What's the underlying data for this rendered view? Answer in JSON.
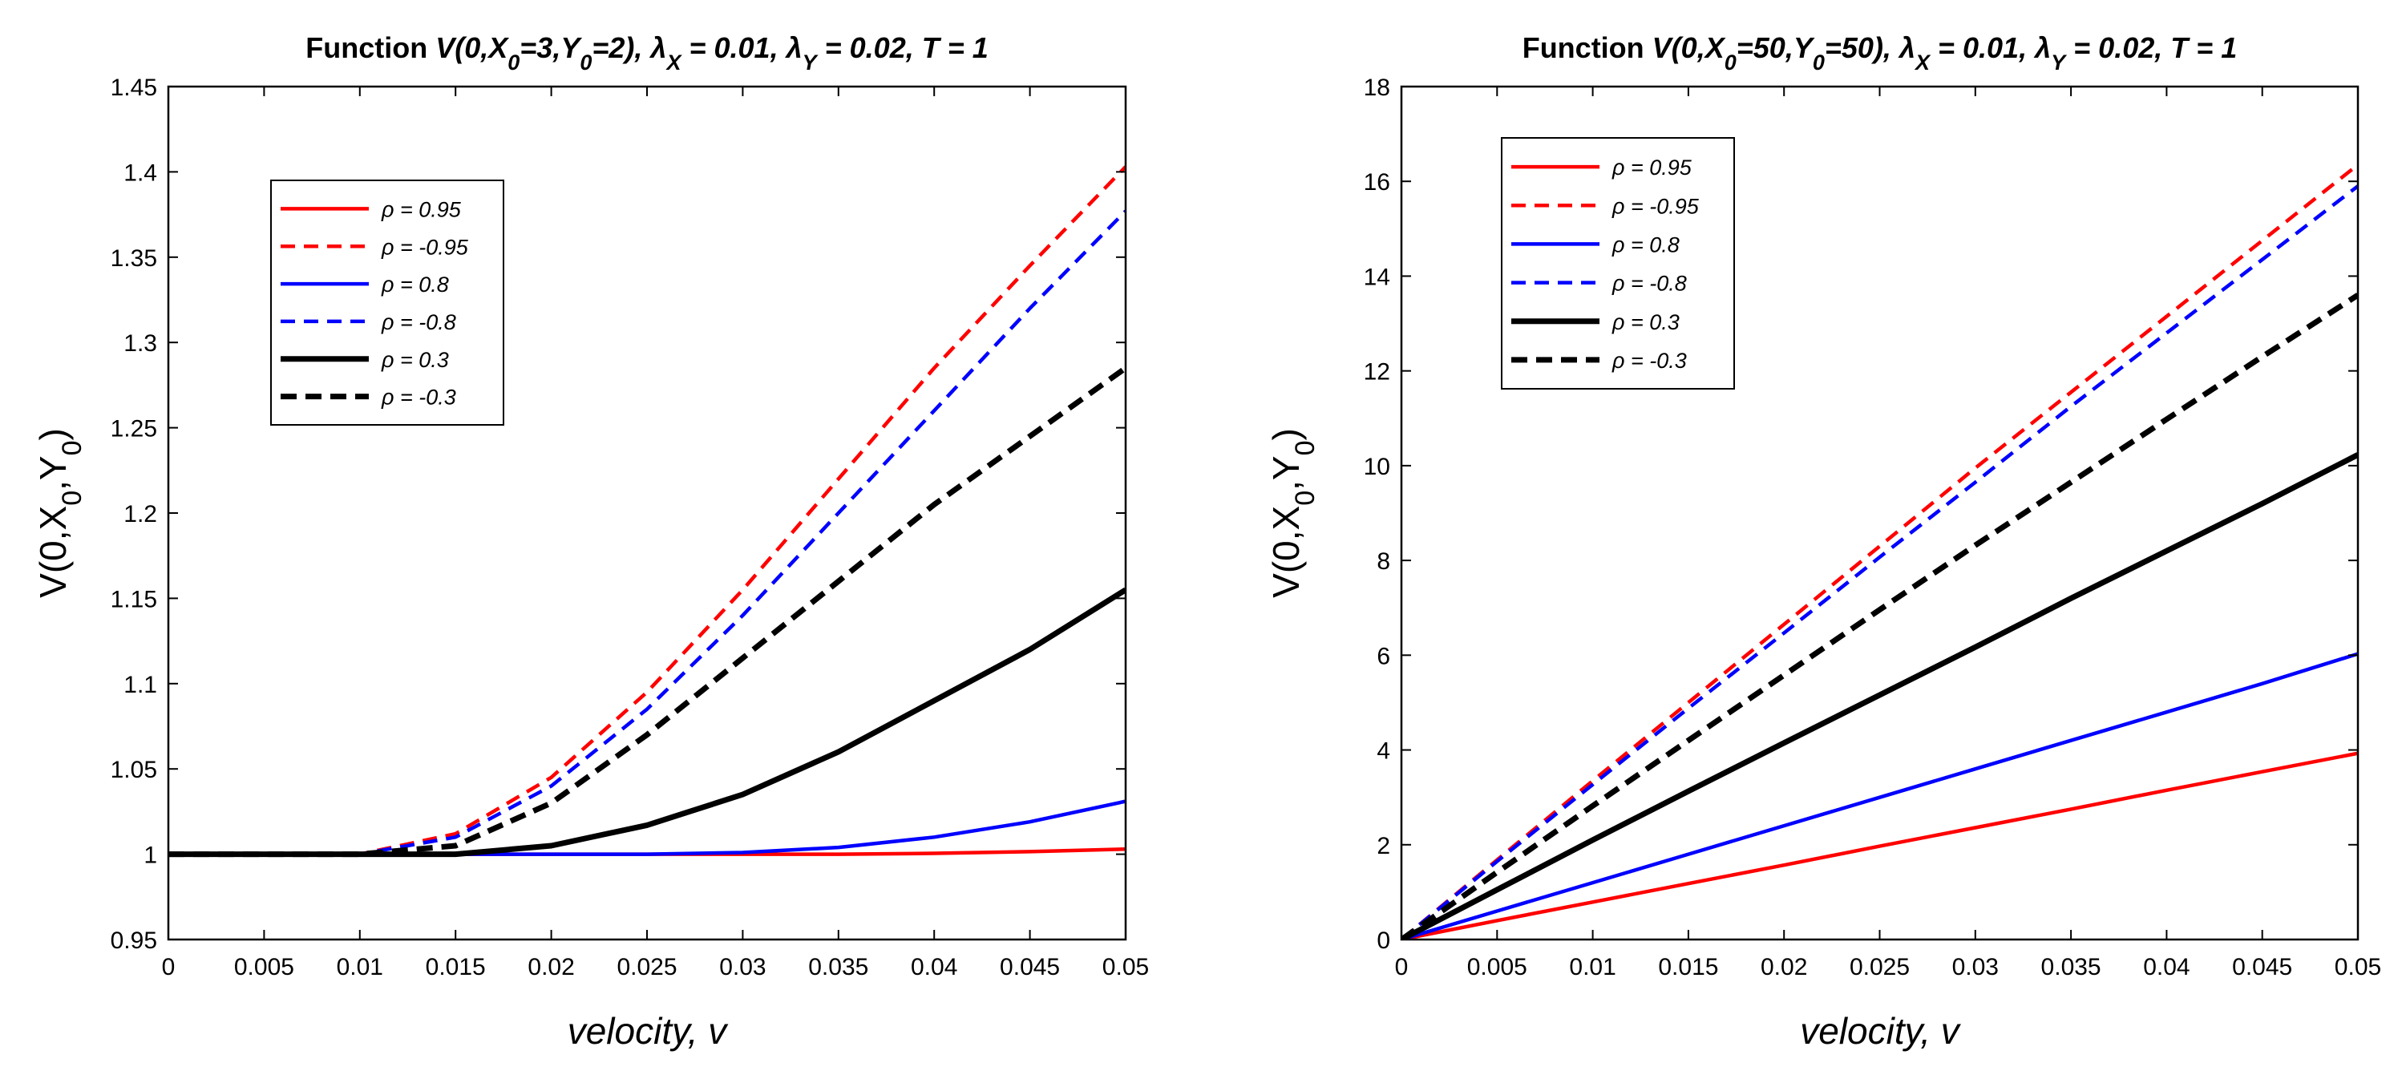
{
  "chart_data": [
    {
      "type": "line",
      "title": {
        "prefix": "Function",
        "parts": [
          {
            "t": "V(0,X",
            "sub": false
          },
          {
            "t": "0",
            "sub": true
          },
          {
            "t": "=3,Y",
            "sub": false
          },
          {
            "t": "0",
            "sub": true
          },
          {
            "t": "=2), ",
            "sub": false
          },
          {
            "t": "λ",
            "sub": false
          },
          {
            "t": "X",
            "sub": true
          },
          {
            "t": " = 0.01, ",
            "sub": false
          },
          {
            "t": "λ",
            "sub": false
          },
          {
            "t": "Y",
            "sub": true
          },
          {
            "t": " = 0.02, T = 1",
            "sub": false
          }
        ]
      },
      "xlabel": "velocity, v",
      "ylabel": {
        "main": "V(0,X",
        "sub1": "0",
        "mid": ",Y",
        "sub2": "0",
        "end": ")"
      },
      "xlim": [
        0,
        0.05
      ],
      "ylim": [
        0.95,
        1.45
      ],
      "xticks": [
        0,
        0.005,
        0.01,
        0.015,
        0.02,
        0.025,
        0.03,
        0.035,
        0.04,
        0.045,
        0.05
      ],
      "xtick_labels": [
        "0",
        "0.005",
        "0.01",
        "0.015",
        "0.02",
        "0.025",
        "0.03",
        "0.035",
        "0.04",
        "0.045",
        "0.05"
      ],
      "yticks": [
        0.95,
        1,
        1.05,
        1.1,
        1.15,
        1.2,
        1.25,
        1.3,
        1.35,
        1.4,
        1.45
      ],
      "ytick_labels": [
        "0.95",
        "1",
        "1.05",
        "1.1",
        "1.15",
        "1.2",
        "1.25",
        "1.3",
        "1.35",
        "1.4",
        "1.45"
      ],
      "legend_position": "upper-left",
      "x": [
        0,
        0.005,
        0.01,
        0.015,
        0.02,
        0.025,
        0.03,
        0.035,
        0.04,
        0.045,
        0.05
      ],
      "series": [
        {
          "name": "ρ = 0.95",
          "color": "#ff0000",
          "dash": false,
          "bold": false,
          "values": [
            1,
            1,
            1,
            1,
            1,
            1,
            1,
            1,
            1.0005,
            1.0015,
            1.003
          ]
        },
        {
          "name": "ρ = -0.95",
          "color": "#ff0000",
          "dash": true,
          "bold": false,
          "values": [
            1,
            1,
            1,
            1.012,
            1.045,
            1.095,
            1.155,
            1.22,
            1.285,
            1.345,
            1.403
          ]
        },
        {
          "name": "ρ = 0.8",
          "color": "#0000ff",
          "dash": false,
          "bold": false,
          "values": [
            1,
            1,
            1,
            1,
            1,
            1,
            1.001,
            1.004,
            1.01,
            1.019,
            1.031
          ]
        },
        {
          "name": "ρ = -0.8",
          "color": "#0000ff",
          "dash": true,
          "bold": false,
          "values": [
            1,
            1,
            1,
            1.01,
            1.04,
            1.085,
            1.14,
            1.2,
            1.26,
            1.32,
            1.377
          ]
        },
        {
          "name": "ρ = 0.3",
          "color": "#000000",
          "dash": false,
          "bold": true,
          "values": [
            1,
            1,
            1,
            1,
            1.005,
            1.017,
            1.035,
            1.06,
            1.09,
            1.12,
            1.155
          ]
        },
        {
          "name": "ρ = -0.3",
          "color": "#000000",
          "dash": true,
          "bold": true,
          "values": [
            1,
            1,
            1,
            1.005,
            1.03,
            1.07,
            1.115,
            1.16,
            1.205,
            1.245,
            1.285
          ]
        }
      ]
    },
    {
      "type": "line",
      "title": {
        "prefix": "Function",
        "parts": [
          {
            "t": "V(0,X",
            "sub": false
          },
          {
            "t": "0",
            "sub": true
          },
          {
            "t": "=50,Y",
            "sub": false
          },
          {
            "t": "0",
            "sub": true
          },
          {
            "t": "=50), ",
            "sub": false
          },
          {
            "t": "λ",
            "sub": false
          },
          {
            "t": "X",
            "sub": true
          },
          {
            "t": " = 0.01, ",
            "sub": false
          },
          {
            "t": "λ",
            "sub": false
          },
          {
            "t": "Y",
            "sub": true
          },
          {
            "t": " = 0.02, T = 1",
            "sub": false
          }
        ]
      },
      "xlabel": "velocity, v",
      "ylabel": {
        "main": "V(0,X",
        "sub1": "0",
        "mid": ",Y",
        "sub2": "0",
        "end": ")"
      },
      "xlim": [
        0,
        0.05
      ],
      "ylim": [
        0,
        18
      ],
      "xticks": [
        0,
        0.005,
        0.01,
        0.015,
        0.02,
        0.025,
        0.03,
        0.035,
        0.04,
        0.045,
        0.05
      ],
      "xtick_labels": [
        "0",
        "0.005",
        "0.01",
        "0.015",
        "0.02",
        "0.025",
        "0.03",
        "0.035",
        "0.04",
        "0.045",
        "0.05"
      ],
      "yticks": [
        0,
        2,
        4,
        6,
        8,
        10,
        12,
        14,
        16,
        18
      ],
      "ytick_labels": [
        "0",
        "2",
        "4",
        "6",
        "8",
        "10",
        "12",
        "14",
        "16",
        "18"
      ],
      "legend_position": "upper-left",
      "x": [
        0,
        0.005,
        0.01,
        0.015,
        0.02,
        0.025,
        0.03,
        0.035,
        0.04,
        0.045,
        0.05
      ],
      "series": [
        {
          "name": "ρ = 0.95",
          "color": "#ff0000",
          "dash": false,
          "bold": false,
          "values": [
            0,
            0.4,
            0.79,
            1.18,
            1.57,
            1.97,
            2.36,
            2.75,
            3.15,
            3.54,
            3.93
          ]
        },
        {
          "name": "ρ = -0.95",
          "color": "#ff0000",
          "dash": true,
          "bold": false,
          "values": [
            0,
            1.68,
            3.35,
            5.0,
            6.65,
            8.3,
            9.95,
            11.55,
            13.15,
            14.75,
            16.35
          ]
        },
        {
          "name": "ρ = 0.8",
          "color": "#0000ff",
          "dash": false,
          "bold": false,
          "values": [
            0,
            0.6,
            1.2,
            1.8,
            2.4,
            3.0,
            3.6,
            4.2,
            4.8,
            5.4,
            6.03
          ]
        },
        {
          "name": "ρ = -0.8",
          "color": "#0000ff",
          "dash": true,
          "bold": false,
          "values": [
            0,
            1.65,
            3.27,
            4.88,
            6.47,
            8.07,
            9.65,
            11.25,
            12.8,
            14.35,
            15.9
          ]
        },
        {
          "name": "ρ = 0.3",
          "color": "#000000",
          "dash": false,
          "bold": true,
          "values": [
            0,
            1.05,
            2.1,
            3.13,
            4.15,
            5.16,
            6.17,
            7.2,
            8.2,
            9.2,
            10.23
          ]
        },
        {
          "name": "ρ = -0.3",
          "color": "#000000",
          "dash": true,
          "bold": true,
          "values": [
            0,
            1.42,
            2.82,
            4.2,
            5.58,
            6.96,
            8.32,
            9.65,
            10.98,
            12.3,
            13.6
          ]
        }
      ]
    }
  ]
}
